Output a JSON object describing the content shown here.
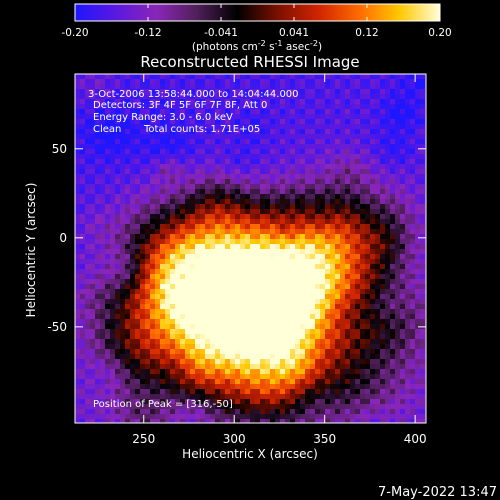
{
  "colorbar": {
    "ticks": [
      "-0.20",
      "-0.12",
      "-0.041",
      "0.041",
      "0.12",
      "0.20"
    ],
    "units_prefix": "(photons cm",
    "units_exp1": "-2",
    "units_mid": " s",
    "units_exp2": "-1",
    "units_mid2": " asec",
    "units_exp3": "-2",
    "units_suffix": ")",
    "stops": [
      "#1e16ff",
      "#5a18e0",
      "#8a26b8",
      "#50205a",
      "#000000",
      "#7a1000",
      "#d02400",
      "#ff6a00",
      "#ffc800",
      "#ffffd8"
    ]
  },
  "chart_data": {
    "type": "heatmap",
    "title": "Reconstructed RHESSI Image",
    "xlabel": "Heliocentric X (arcsec)",
    "ylabel": "Heliocentric Y (arcsec)",
    "xlim": [
      212,
      406
    ],
    "ylim": [
      -104,
      92
    ],
    "x_ticks": [
      250,
      300,
      350,
      400
    ],
    "y_ticks": [
      50,
      0,
      -50
    ],
    "annotations": {
      "time": "3-Oct-2006 13:58:44.000 to 14:04:44.000",
      "detectors": "Detectors: 3F 4F 5F 6F 7F 8F, Att 0",
      "energy": "Energy Range: 3.0 - 6.0 keV",
      "clean": "Clean",
      "counts": "Total counts: 1.71E+05",
      "peak": "Position of Peak = [316,-50]"
    },
    "peak": {
      "x": 316,
      "y": -50
    },
    "source_core": {
      "x": 310,
      "y": -45,
      "sigma_x": 38,
      "sigma_y": 32
    },
    "background_level": -0.14,
    "peak_value": 0.2
  },
  "timestamp": "7-May-2022 13:47"
}
